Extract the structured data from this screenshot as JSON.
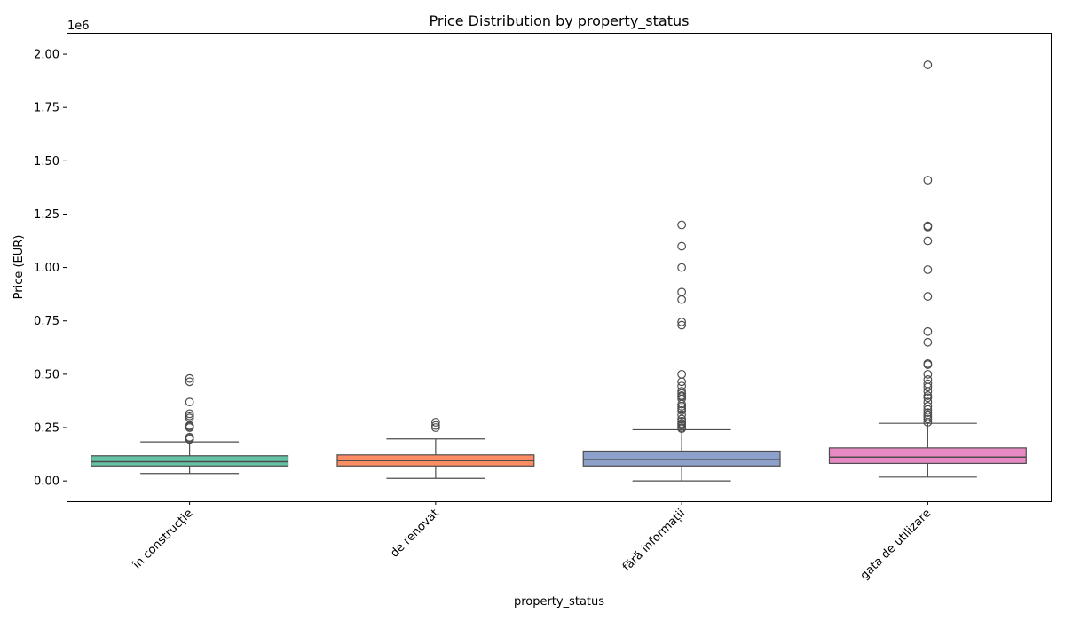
{
  "chart_data": {
    "type": "box",
    "title": "Price Distribution by property_status",
    "xlabel": "property_status",
    "ylabel": "Price (EUR)",
    "y_offset_label": "1e6",
    "ylim": [
      -0.095,
      2.1
    ],
    "y_ticks": [
      0.0,
      0.25,
      0.5,
      0.75,
      1.0,
      1.25,
      1.5,
      1.75,
      2.0
    ],
    "y_tick_labels": [
      "0.00",
      "0.25",
      "0.50",
      "0.75",
      "1.00",
      "1.25",
      "1.50",
      "1.75",
      "2.00"
    ],
    "categories": [
      "în construcție",
      "de renovat",
      "fără informații",
      "gata de utilizare"
    ],
    "boxes": [
      {
        "category": "în construcție",
        "color": "#66c2a5",
        "whisker_low": 0.035,
        "q1": 0.07,
        "median": 0.09,
        "q3": 0.118,
        "whisker_high": 0.183,
        "outliers": [
          0.195,
          0.2,
          0.205,
          0.25,
          0.255,
          0.26,
          0.295,
          0.305,
          0.315,
          0.37,
          0.465,
          0.48
        ]
      },
      {
        "category": "de renovat",
        "color": "#fc8d62",
        "whisker_low": 0.012,
        "q1": 0.07,
        "median": 0.095,
        "q3": 0.122,
        "whisker_high": 0.197,
        "outliers": [
          0.25,
          0.26,
          0.275
        ]
      },
      {
        "category": "fără informații",
        "color": "#8da0cb",
        "whisker_low": 0.0,
        "q1": 0.07,
        "median": 0.1,
        "q3": 0.14,
        "whisker_high": 0.24,
        "outliers": [
          0.245,
          0.25,
          0.26,
          0.265,
          0.27,
          0.28,
          0.29,
          0.31,
          0.33,
          0.34,
          0.35,
          0.36,
          0.385,
          0.395,
          0.4,
          0.41,
          0.42,
          0.445,
          0.465,
          0.5,
          0.73,
          0.745,
          0.85,
          0.885,
          1.0,
          1.1,
          1.2
        ]
      },
      {
        "category": "gata de utilizare",
        "color": "#e78ac3",
        "whisker_low": 0.018,
        "q1": 0.082,
        "median": 0.112,
        "q3": 0.155,
        "whisker_high": 0.27,
        "outliers": [
          0.275,
          0.29,
          0.3,
          0.31,
          0.32,
          0.335,
          0.35,
          0.37,
          0.39,
          0.4,
          0.42,
          0.44,
          0.455,
          0.475,
          0.5,
          0.545,
          0.55,
          0.65,
          0.7,
          0.865,
          0.99,
          1.125,
          1.19,
          1.195,
          1.41,
          1.95
        ]
      }
    ]
  }
}
